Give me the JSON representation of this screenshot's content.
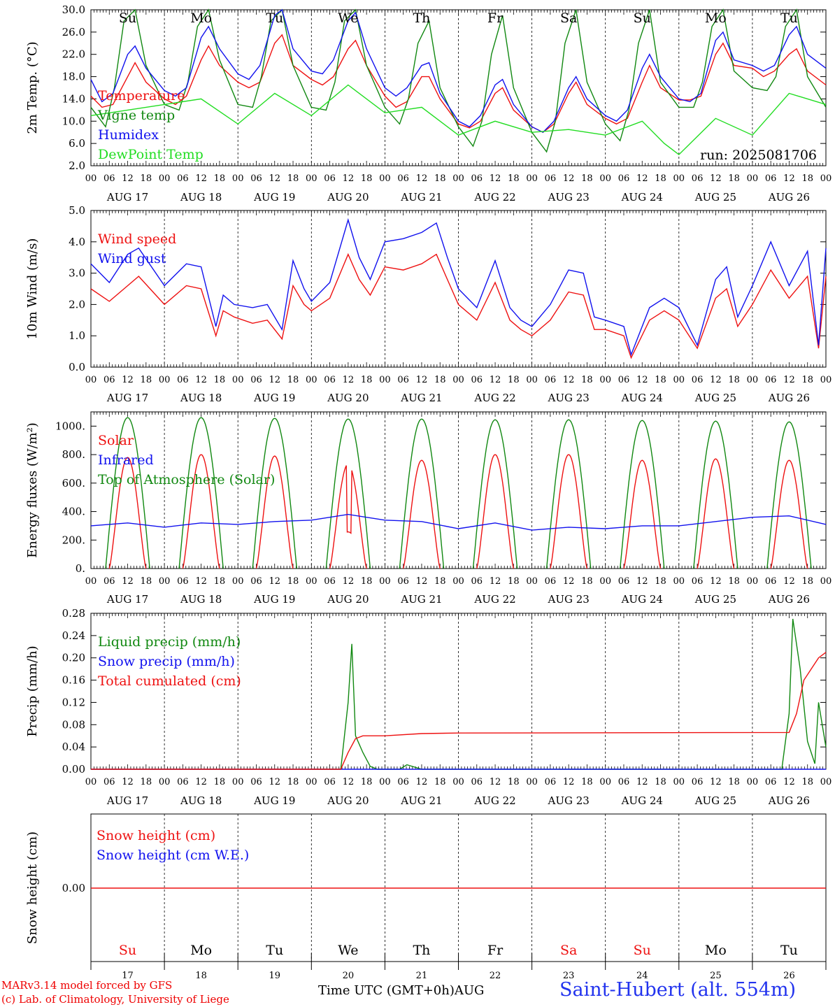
{
  "colors": {
    "red": "#ee1111",
    "green": "#118811",
    "blue": "#1111ee",
    "lightgreen": "#22dd22",
    "sunday_saturday": "#ee1111",
    "weekday": "#000000"
  },
  "x_axis": {
    "hour_ticks": [
      "00",
      "06",
      "12",
      "18"
    ],
    "end_tick": "00",
    "dates": [
      "AUG 17",
      "AUG 18",
      "AUG 19",
      "AUG 20",
      "AUG 21",
      "AUG 22",
      "AUG 23",
      "AUG 24",
      "AUG 25",
      "AUG 26"
    ],
    "weekdays": [
      "Su",
      "Mo",
      "Tu",
      "We",
      "Th",
      "Fr",
      "Sa",
      "Su",
      "Mo",
      "Tu"
    ],
    "day_numbers": [
      "17",
      "18",
      "19",
      "20",
      "21",
      "22",
      "23",
      "24",
      "25",
      "26"
    ],
    "month": "AUG",
    "label": "Time UTC (GMT+0h)"
  },
  "footer": {
    "credit_line1": "MARv3.14 model forced by GFS",
    "credit_line2": "(c) Lab. of Climatology, University of Liege",
    "station": "Saint-Hubert (alt. 554m)"
  },
  "chart_data": [
    {
      "type": "line",
      "ylabel": "2m Temp. (°C)",
      "ylim": [
        2.0,
        30.0
      ],
      "yticks": [
        "2.0",
        "6.0",
        "10.0",
        "14.0",
        "18.0",
        "22.0",
        "26.0",
        "30.0"
      ],
      "run_label": "run: 2025081706",
      "x_unit": "days since Aug 17 00 UTC",
      "series": [
        {
          "name": "Temperature",
          "color": "red",
          "x": [
            0,
            0.15,
            0.3,
            0.5,
            0.6,
            0.75,
            1.0,
            1.15,
            1.3,
            1.5,
            1.6,
            1.75,
            2.0,
            2.15,
            2.3,
            2.5,
            2.6,
            2.75,
            3.0,
            3.15,
            3.3,
            3.5,
            3.6,
            3.75,
            4.0,
            4.15,
            4.3,
            4.5,
            4.6,
            4.75,
            5.0,
            5.15,
            5.3,
            5.5,
            5.6,
            5.75,
            6.0,
            6.15,
            6.3,
            6.5,
            6.6,
            6.75,
            7.0,
            7.15,
            7.3,
            7.5,
            7.6,
            7.75,
            8.0,
            8.15,
            8.3,
            8.5,
            8.6,
            8.75,
            9.0,
            9.15,
            9.3,
            9.5,
            9.6,
            9.75,
            10.0
          ],
          "y": [
            14.5,
            12.5,
            13,
            18,
            20.5,
            17,
            14,
            13,
            14.5,
            21,
            23.5,
            20,
            17,
            16,
            17,
            24,
            25.5,
            20,
            17.5,
            16.5,
            18,
            23,
            24.5,
            20,
            14.5,
            12.5,
            13.5,
            18,
            18,
            14,
            9.5,
            8.8,
            10,
            15,
            16,
            12,
            9,
            8,
            9.5,
            15,
            17,
            13,
            10.5,
            9.5,
            10.5,
            17,
            20,
            16,
            13.8,
            13.8,
            14.5,
            22,
            24,
            20,
            19.5,
            18,
            19,
            22,
            23,
            19,
            16.5
          ]
        },
        {
          "name": "Vigne temp",
          "color": "green",
          "x": [
            0,
            0.2,
            0.32,
            0.45,
            0.6,
            0.75,
            1.0,
            1.2,
            1.32,
            1.45,
            1.6,
            1.75,
            2.0,
            2.2,
            2.32,
            2.45,
            2.6,
            2.75,
            3.0,
            3.2,
            3.32,
            3.45,
            3.6,
            3.75,
            4.0,
            4.2,
            4.32,
            4.45,
            4.6,
            4.75,
            5.0,
            5.2,
            5.32,
            5.45,
            5.6,
            5.75,
            6.0,
            6.2,
            6.32,
            6.45,
            6.6,
            6.75,
            7.0,
            7.2,
            7.32,
            7.45,
            7.6,
            7.75,
            8.0,
            8.2,
            8.32,
            8.45,
            8.6,
            8.75,
            9.0,
            9.2,
            9.32,
            9.45,
            9.6,
            9.75,
            10.0
          ],
          "y": [
            12.5,
            9,
            16,
            28,
            30,
            20,
            13,
            12,
            17,
            27,
            30,
            21,
            13,
            12.5,
            18,
            28,
            30,
            20,
            12.5,
            12,
            17,
            28,
            30,
            20,
            12.5,
            9.5,
            14,
            24,
            28,
            16,
            9,
            5.5,
            10,
            22,
            29,
            16,
            8,
            4.5,
            10,
            24,
            30,
            17,
            9.5,
            6.5,
            12,
            24,
            30,
            17,
            12.5,
            12.5,
            17,
            27,
            30,
            19,
            16,
            15.5,
            18,
            27,
            30,
            18,
            12.5
          ]
        },
        {
          "name": "Humidex",
          "color": "blue",
          "x": [
            0,
            0.15,
            0.3,
            0.5,
            0.6,
            0.75,
            1.0,
            1.15,
            1.3,
            1.5,
            1.6,
            1.75,
            2.0,
            2.15,
            2.3,
            2.5,
            2.6,
            2.75,
            3.0,
            3.15,
            3.3,
            3.5,
            3.6,
            3.75,
            4.0,
            4.15,
            4.3,
            4.5,
            4.6,
            4.75,
            5.0,
            5.15,
            5.3,
            5.5,
            5.6,
            5.75,
            6.0,
            6.15,
            6.3,
            6.5,
            6.6,
            6.75,
            7.0,
            7.15,
            7.3,
            7.5,
            7.6,
            7.75,
            8.0,
            8.15,
            8.3,
            8.5,
            8.6,
            8.75,
            9.0,
            9.15,
            9.3,
            9.5,
            9.6,
            9.75,
            10.0
          ],
          "y": [
            17.5,
            13.5,
            15,
            22,
            23.5,
            19.5,
            15.5,
            14.5,
            16,
            25,
            27,
            23,
            18.5,
            17.5,
            20,
            29,
            30,
            23,
            19,
            18.5,
            21,
            28,
            29.5,
            23,
            16,
            14.5,
            16,
            20,
            20.5,
            15,
            10,
            9,
            11,
            16.5,
            17.5,
            13,
            9,
            8,
            10,
            16,
            18,
            14,
            11,
            10,
            12,
            19.5,
            22,
            18,
            14,
            13.5,
            15,
            24.5,
            26,
            21,
            20,
            19,
            20,
            25.5,
            27,
            22,
            19.5
          ]
        },
        {
          "name": "DewPoint Temp",
          "color": "lightgreen",
          "x": [
            0,
            0.5,
            1.0,
            1.5,
            2.0,
            2.5,
            3.0,
            3.5,
            4.0,
            4.5,
            5.0,
            5.5,
            6.0,
            6.5,
            7.0,
            7.5,
            7.8,
            8.0,
            8.5,
            9.0,
            9.5,
            10.0
          ],
          "y": [
            11,
            12,
            13,
            14,
            9.5,
            15,
            11,
            16.5,
            11.5,
            12.5,
            7.5,
            10,
            8,
            8.5,
            7.5,
            10,
            6,
            4,
            10.5,
            7.5,
            15,
            13
          ]
        }
      ]
    },
    {
      "type": "line",
      "ylabel": "10m Wind (m/s)",
      "ylim": [
        0.0,
        5.0
      ],
      "yticks": [
        "0.0",
        "1.0",
        "2.0",
        "3.0",
        "4.0",
        "5.0"
      ],
      "x_unit": "days since Aug 17 00 UTC",
      "series": [
        {
          "name": "Wind speed",
          "color": "red",
          "x": [
            0,
            0.25,
            0.5,
            0.65,
            1.0,
            1.3,
            1.5,
            1.7,
            1.8,
            1.95,
            2.2,
            2.4,
            2.6,
            2.75,
            2.9,
            3.0,
            3.25,
            3.5,
            3.65,
            3.8,
            4.0,
            4.25,
            4.5,
            4.7,
            4.85,
            5.0,
            5.25,
            5.5,
            5.7,
            5.85,
            6.0,
            6.25,
            6.5,
            6.7,
            6.85,
            7.0,
            7.25,
            7.35,
            7.6,
            7.8,
            8.0,
            8.25,
            8.5,
            8.65,
            8.8,
            9.0,
            9.25,
            9.5,
            9.75,
            9.9,
            10.0
          ],
          "y": [
            2.5,
            2.1,
            2.6,
            2.9,
            2.0,
            2.6,
            2.5,
            1.0,
            1.8,
            1.6,
            1.4,
            1.5,
            0.9,
            2.6,
            2.0,
            1.8,
            2.2,
            3.6,
            2.8,
            2.3,
            3.2,
            3.1,
            3.3,
            3.6,
            2.8,
            2.0,
            1.5,
            2.7,
            1.5,
            1.2,
            1.0,
            1.5,
            2.4,
            2.3,
            1.2,
            1.2,
            1.0,
            0.3,
            1.5,
            1.8,
            1.5,
            0.6,
            2.2,
            2.5,
            1.3,
            2.0,
            3.1,
            2.2,
            2.9,
            0.6,
            2.9
          ]
        },
        {
          "name": "Wind gust",
          "color": "blue",
          "x": [
            0,
            0.25,
            0.5,
            0.65,
            1.0,
            1.3,
            1.5,
            1.7,
            1.8,
            1.95,
            2.2,
            2.4,
            2.6,
            2.75,
            2.9,
            3.0,
            3.25,
            3.5,
            3.65,
            3.8,
            4.0,
            4.25,
            4.5,
            4.7,
            4.85,
            5.0,
            5.25,
            5.5,
            5.7,
            5.85,
            6.0,
            6.25,
            6.5,
            6.7,
            6.85,
            7.0,
            7.25,
            7.35,
            7.6,
            7.8,
            8.0,
            8.25,
            8.5,
            8.65,
            8.8,
            9.0,
            9.25,
            9.5,
            9.75,
            9.9,
            10.0
          ],
          "y": [
            3.3,
            2.7,
            3.6,
            3.8,
            2.6,
            3.3,
            3.2,
            1.3,
            2.3,
            2.0,
            1.9,
            2.0,
            1.2,
            3.4,
            2.5,
            2.1,
            2.7,
            4.7,
            3.5,
            2.8,
            4.0,
            4.1,
            4.3,
            4.6,
            3.5,
            2.5,
            1.9,
            3.4,
            1.9,
            1.5,
            1.3,
            2.0,
            3.1,
            3.0,
            1.6,
            1.5,
            1.3,
            0.4,
            1.9,
            2.2,
            1.9,
            0.7,
            2.8,
            3.2,
            1.6,
            2.6,
            4.0,
            2.6,
            3.7,
            0.7,
            3.8
          ]
        }
      ]
    },
    {
      "type": "line",
      "ylabel": "Energy fluxes (W/m²)",
      "ylim": [
        0,
        1100
      ],
      "yticks": [
        "0.",
        "200.",
        "400.",
        "600.",
        "800.",
        "1000."
      ],
      "x_unit": "days since Aug 17 00 UTC",
      "series": [
        {
          "name": "Solar",
          "color": "red",
          "daily_peak": [
            780,
            800,
            790,
            735,
            760,
            800,
            800,
            760,
            770,
            760
          ],
          "note": "day 20 peak 735 with dips"
        },
        {
          "name": "Infrared",
          "color": "blue",
          "x": [
            0,
            0.5,
            1.0,
            1.5,
            2.0,
            2.5,
            3.0,
            3.5,
            4.0,
            4.5,
            5.0,
            5.5,
            6.0,
            6.5,
            7.0,
            7.5,
            8.0,
            8.5,
            9.0,
            9.5,
            10.0
          ],
          "y": [
            300,
            320,
            290,
            320,
            310,
            330,
            340,
            380,
            340,
            330,
            280,
            320,
            270,
            290,
            280,
            300,
            300,
            330,
            360,
            370,
            310
          ]
        },
        {
          "name": "Top of Atmosphere (Solar)",
          "color": "green",
          "daily_peak": [
            1060,
            1060,
            1055,
            1050,
            1050,
            1045,
            1045,
            1040,
            1035,
            1030
          ]
        }
      ]
    },
    {
      "type": "line",
      "ylabel": "Precip (mm/h)",
      "ylim": [
        0.0,
        0.28
      ],
      "yticks": [
        "0.00",
        "0.04",
        "0.08",
        "0.12",
        "0.16",
        "0.20",
        "0.24",
        "0.28"
      ],
      "x_unit": "days since Aug 17 00 UTC",
      "series": [
        {
          "name": "Liquid precip (mm/h)",
          "color": "green",
          "x": [
            0,
            3.4,
            3.5,
            3.55,
            3.6,
            3.7,
            3.8,
            3.9,
            4.2,
            4.3,
            4.5,
            9.4,
            9.5,
            9.55,
            9.65,
            9.75,
            9.85,
            9.9,
            9.95,
            10.0
          ],
          "y": [
            0,
            0,
            0.12,
            0.225,
            0.06,
            0.03,
            0.005,
            0,
            0,
            0.008,
            0,
            0,
            0.1,
            0.27,
            0.18,
            0.05,
            0.01,
            0.12,
            0.08,
            0.04
          ]
        },
        {
          "name": "Snow precip (mm/h)",
          "color": "blue",
          "x": [
            0,
            10
          ],
          "y": [
            0,
            0
          ]
        },
        {
          "name": "Total cumulated (cm)",
          "color": "red",
          "x": [
            0,
            3.4,
            3.5,
            3.6,
            3.7,
            4.0,
            4.5,
            5.0,
            9.5,
            9.6,
            9.7,
            9.8,
            9.9,
            10.0
          ],
          "y": [
            0,
            0,
            0.03,
            0.055,
            0.06,
            0.06,
            0.064,
            0.065,
            0.066,
            0.1,
            0.16,
            0.18,
            0.2,
            0.21
          ]
        }
      ]
    },
    {
      "type": "line",
      "ylabel": "Snow height (cm)",
      "yticks": [
        "0.00"
      ],
      "x_unit": "days since Aug 17 00 UTC",
      "series": [
        {
          "name": "Snow height (cm)",
          "color": "red",
          "x": [
            0,
            10
          ],
          "y": [
            0,
            0
          ]
        },
        {
          "name": "Snow height (cm W.E.)",
          "color": "blue",
          "x": [
            0,
            10
          ],
          "y": [
            0,
            0
          ]
        }
      ]
    }
  ]
}
